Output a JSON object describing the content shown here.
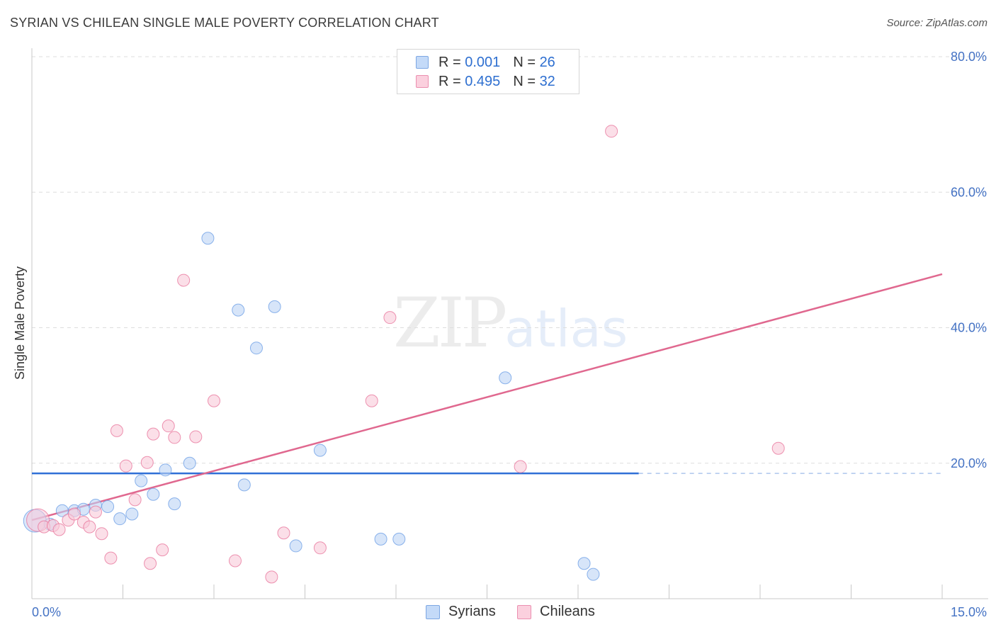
{
  "title": "SYRIAN VS CHILEAN SINGLE MALE POVERTY CORRELATION CHART",
  "source": "Source: ZipAtlas.com",
  "watermark": {
    "zip": "ZIP",
    "atlas": "atlas"
  },
  "legend": {
    "syrians": {
      "r_label": "R = ",
      "r_value": "0.001",
      "n_label": "N = ",
      "n_value": "26",
      "color": "#a9c8f5"
    },
    "chileans": {
      "r_label": "R = ",
      "r_value": "0.495",
      "n_label": "N = ",
      "n_value": "32",
      "color": "#f7b6ca"
    }
  },
  "bottom_legend": {
    "syrians": "Syrians",
    "chileans": "Chileans"
  },
  "chart_data": {
    "type": "scatter",
    "title": "SYRIAN VS CHILEAN SINGLE MALE POVERTY CORRELATION CHART",
    "xlabel": "",
    "ylabel": "Single Male Poverty",
    "xlim": [
      0,
      15
    ],
    "ylim": [
      0,
      80
    ],
    "x_tick_labels": [
      "0.0%",
      "15.0%"
    ],
    "y_tick_labels": [
      "20.0%",
      "40.0%",
      "60.0%",
      "80.0%"
    ],
    "y_ticks": [
      20,
      40,
      60,
      80
    ],
    "grid": "horizontal dashed",
    "legend_placement": "top-center",
    "series": [
      {
        "name": "Syrians",
        "color": "#6fa0e6",
        "fill": "#bcd4f5",
        "r": 0.001,
        "n": 26,
        "trend": {
          "x": [
            0,
            10
          ],
          "y": [
            18.5,
            18.5
          ],
          "dashed_extension_to": 15
        },
        "points": [
          {
            "x": 0.05,
            "y": 11.5,
            "big": true
          },
          {
            "x": 0.3,
            "y": 11.0
          },
          {
            "x": 0.5,
            "y": 13.0
          },
          {
            "x": 0.7,
            "y": 13.0
          },
          {
            "x": 0.85,
            "y": 13.2
          },
          {
            "x": 1.05,
            "y": 13.8
          },
          {
            "x": 1.25,
            "y": 13.6
          },
          {
            "x": 1.45,
            "y": 11.8
          },
          {
            "x": 1.65,
            "y": 12.5
          },
          {
            "x": 1.8,
            "y": 17.4
          },
          {
            "x": 2.0,
            "y": 15.4
          },
          {
            "x": 2.2,
            "y": 19.0
          },
          {
            "x": 2.35,
            "y": 14.0
          },
          {
            "x": 2.6,
            "y": 20.0
          },
          {
            "x": 2.9,
            "y": 53.2
          },
          {
            "x": 3.4,
            "y": 42.6
          },
          {
            "x": 3.5,
            "y": 16.8
          },
          {
            "x": 3.7,
            "y": 37.0
          },
          {
            "x": 4.0,
            "y": 43.1
          },
          {
            "x": 4.35,
            "y": 7.8
          },
          {
            "x": 4.75,
            "y": 21.9
          },
          {
            "x": 5.75,
            "y": 8.8
          },
          {
            "x": 6.05,
            "y": 8.8
          },
          {
            "x": 7.8,
            "y": 32.6
          },
          {
            "x": 9.1,
            "y": 5.2
          },
          {
            "x": 9.25,
            "y": 3.6
          }
        ]
      },
      {
        "name": "Chileans",
        "color": "#e8789e",
        "fill": "#f9c9d8",
        "r": 0.495,
        "n": 32,
        "trend": {
          "x": [
            0,
            15
          ],
          "y": [
            11.6,
            47.9
          ]
        },
        "points": [
          {
            "x": 0.1,
            "y": 11.6,
            "big": true
          },
          {
            "x": 0.2,
            "y": 10.6
          },
          {
            "x": 0.35,
            "y": 10.8
          },
          {
            "x": 0.45,
            "y": 10.2
          },
          {
            "x": 0.6,
            "y": 11.6
          },
          {
            "x": 0.7,
            "y": 12.5
          },
          {
            "x": 0.85,
            "y": 11.3
          },
          {
            "x": 0.95,
            "y": 10.6
          },
          {
            "x": 1.05,
            "y": 12.8
          },
          {
            "x": 1.15,
            "y": 9.6
          },
          {
            "x": 1.3,
            "y": 6.0
          },
          {
            "x": 1.4,
            "y": 24.8
          },
          {
            "x": 1.55,
            "y": 19.6
          },
          {
            "x": 1.7,
            "y": 14.6
          },
          {
            "x": 1.9,
            "y": 20.1
          },
          {
            "x": 1.95,
            "y": 5.2
          },
          {
            "x": 2.0,
            "y": 24.3
          },
          {
            "x": 2.15,
            "y": 7.2
          },
          {
            "x": 2.25,
            "y": 25.5
          },
          {
            "x": 2.35,
            "y": 23.8
          },
          {
            "x": 2.5,
            "y": 47.0
          },
          {
            "x": 2.7,
            "y": 23.9
          },
          {
            "x": 3.0,
            "y": 29.2
          },
          {
            "x": 3.35,
            "y": 5.6
          },
          {
            "x": 3.95,
            "y": 3.2
          },
          {
            "x": 4.15,
            "y": 9.7
          },
          {
            "x": 4.75,
            "y": 7.5
          },
          {
            "x": 5.6,
            "y": 29.2
          },
          {
            "x": 5.9,
            "y": 41.5
          },
          {
            "x": 8.05,
            "y": 19.5
          },
          {
            "x": 9.55,
            "y": 69.0
          },
          {
            "x": 12.3,
            "y": 22.2
          }
        ]
      }
    ]
  }
}
